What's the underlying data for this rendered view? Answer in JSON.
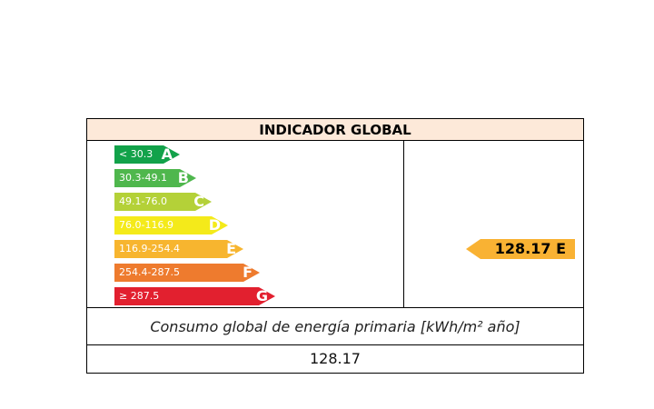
{
  "title": "INDICADOR GLOBAL",
  "bands": [
    {
      "range": "< 30.3",
      "letter": "A",
      "color": "#12a24a"
    },
    {
      "range": "30.3-49.1",
      "letter": "B",
      "color": "#4fb74d"
    },
    {
      "range": "49.1-76.0",
      "letter": "C",
      "color": "#b4d138"
    },
    {
      "range": "76.0-116.9",
      "letter": "D",
      "color": "#f4ea1a"
    },
    {
      "range": "116.9-254.4",
      "letter": "E",
      "color": "#f7b52f"
    },
    {
      "range": "254.4-287.5",
      "letter": "F",
      "color": "#ee7b2e"
    },
    {
      "range": "≥ 287.5",
      "letter": "G",
      "color": "#e2202f"
    }
  ],
  "rating": {
    "value": "128.17",
    "letter": "E",
    "color": "#f9b233"
  },
  "caption": "Consumo global de energía primaria [kWh/m² año]",
  "total": "128.17"
}
